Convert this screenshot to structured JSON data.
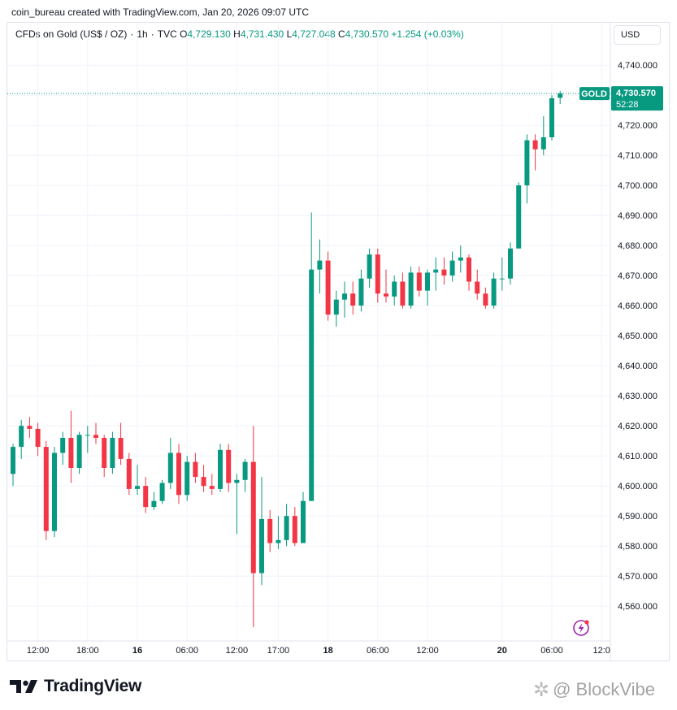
{
  "caption": "coin_bureau created with TradingView.com, Jan 20, 2026 09:07 UTC",
  "symbol": {
    "name": "CFDs on Gold (US$ / OZ)",
    "interval": "1h",
    "source": "TVC",
    "o_label": "O",
    "o_value": "4,729.130",
    "h_label": "H",
    "h_value": "4,731.430",
    "l_label": "L",
    "l_value": "4,727.048",
    "c_label": "C",
    "c_value": "4,730.570",
    "change": "+1.254 (+0.03%)"
  },
  "currency": "USD",
  "price_tag": {
    "symbol": "GOLD",
    "price": "4,730.570",
    "countdown": "52:28"
  },
  "colors": {
    "up": "#089981",
    "down": "#f23645",
    "grid": "#f0f3fa"
  },
  "brand": {
    "name": "TradingView"
  },
  "watermark": {
    "text": "@ BlockVibe"
  },
  "chart_data": {
    "type": "candlestick",
    "y_ticks": [
      "4,560.000",
      "4,570.000",
      "4,580.000",
      "4,590.000",
      "4,600.000",
      "4,610.000",
      "4,620.000",
      "4,630.000",
      "4,640.000",
      "4,650.000",
      "4,660.000",
      "4,670.000",
      "4,680.000",
      "4,690.000",
      "4,700.000",
      "4,710.000",
      "4,720.000",
      "4,730.000",
      "4,740.000"
    ],
    "x_ticks": [
      {
        "label": "12:00",
        "i": 3
      },
      {
        "label": "18:00",
        "i": 9
      },
      {
        "label": "16",
        "i": 15
      },
      {
        "label": "06:00",
        "i": 21
      },
      {
        "label": "12:00",
        "i": 27
      },
      {
        "label": "17:00",
        "i": 32
      },
      {
        "label": "18",
        "i": 38
      },
      {
        "label": "06:00",
        "i": 44
      },
      {
        "label": "12:00",
        "i": 50
      },
      {
        "label": "20",
        "i": 59
      },
      {
        "label": "06:00",
        "i": 65
      },
      {
        "label": "12:0",
        "i": 71
      }
    ],
    "ylim": [
      4551,
      4748
    ],
    "last_price": 4730.57,
    "candles": [
      {
        "o": 4604,
        "h": 4614,
        "l": 4600,
        "c": 4613
      },
      {
        "o": 4613,
        "h": 4622,
        "l": 4609,
        "c": 4620
      },
      {
        "o": 4620,
        "h": 4623,
        "l": 4616,
        "c": 4619
      },
      {
        "o": 4619,
        "h": 4621,
        "l": 4610,
        "c": 4613
      },
      {
        "o": 4613,
        "h": 4615,
        "l": 4582,
        "c": 4585
      },
      {
        "o": 4585,
        "h": 4613,
        "l": 4583,
        "c": 4611
      },
      {
        "o": 4611,
        "h": 4618,
        "l": 4607,
        "c": 4616
      },
      {
        "o": 4616,
        "h": 4625,
        "l": 4601,
        "c": 4606
      },
      {
        "o": 4606,
        "h": 4618,
        "l": 4604,
        "c": 4617
      },
      {
        "o": 4617,
        "h": 4620,
        "l": 4611,
        "c": 4617
      },
      {
        "o": 4617,
        "h": 4621,
        "l": 4614,
        "c": 4616
      },
      {
        "o": 4616,
        "h": 4617,
        "l": 4603,
        "c": 4606
      },
      {
        "o": 4606,
        "h": 4618,
        "l": 4604,
        "c": 4616
      },
      {
        "o": 4616,
        "h": 4621,
        "l": 4607,
        "c": 4609
      },
      {
        "o": 4609,
        "h": 4611,
        "l": 4597,
        "c": 4599
      },
      {
        "o": 4599,
        "h": 4607,
        "l": 4597,
        "c": 4600
      },
      {
        "o": 4600,
        "h": 4603,
        "l": 4591,
        "c": 4593
      },
      {
        "o": 4593,
        "h": 4598,
        "l": 4592,
        "c": 4595
      },
      {
        "o": 4595,
        "h": 4602,
        "l": 4594,
        "c": 4601
      },
      {
        "o": 4601,
        "h": 4616,
        "l": 4599,
        "c": 4611
      },
      {
        "o": 4611,
        "h": 4614,
        "l": 4594,
        "c": 4597
      },
      {
        "o": 4597,
        "h": 4610,
        "l": 4595,
        "c": 4608
      },
      {
        "o": 4608,
        "h": 4611,
        "l": 4601,
        "c": 4603
      },
      {
        "o": 4603,
        "h": 4607,
        "l": 4598,
        "c": 4600
      },
      {
        "o": 4600,
        "h": 4604,
        "l": 4597,
        "c": 4599
      },
      {
        "o": 4599,
        "h": 4614,
        "l": 4598,
        "c": 4612
      },
      {
        "o": 4612,
        "h": 4614,
        "l": 4598,
        "c": 4601
      },
      {
        "o": 4601,
        "h": 4604,
        "l": 4584,
        "c": 4602
      },
      {
        "o": 4602,
        "h": 4609,
        "l": 4598,
        "c": 4608
      },
      {
        "o": 4608,
        "h": 4620,
        "l": 4553,
        "c": 4571
      },
      {
        "o": 4571,
        "h": 4603,
        "l": 4567,
        "c": 4589
      },
      {
        "o": 4589,
        "h": 4592,
        "l": 4578,
        "c": 4581
      },
      {
        "o": 4581,
        "h": 4590,
        "l": 4579,
        "c": 4582
      },
      {
        "o": 4582,
        "h": 4594,
        "l": 4580,
        "c": 4590
      },
      {
        "o": 4590,
        "h": 4593,
        "l": 4580,
        "c": 4581
      },
      {
        "o": 4581,
        "h": 4598,
        "l": 4581,
        "c": 4595
      },
      {
        "o": 4595,
        "h": 4691,
        "l": 4595,
        "c": 4672
      },
      {
        "o": 4672,
        "h": 4682,
        "l": 4664,
        "c": 4675
      },
      {
        "o": 4675,
        "h": 4678,
        "l": 4655,
        "c": 4657
      },
      {
        "o": 4657,
        "h": 4665,
        "l": 4653,
        "c": 4662
      },
      {
        "o": 4662,
        "h": 4668,
        "l": 4656,
        "c": 4664
      },
      {
        "o": 4664,
        "h": 4668,
        "l": 4657,
        "c": 4660
      },
      {
        "o": 4660,
        "h": 4672,
        "l": 4658,
        "c": 4669
      },
      {
        "o": 4669,
        "h": 4679,
        "l": 4666,
        "c": 4677
      },
      {
        "o": 4677,
        "h": 4679,
        "l": 4661,
        "c": 4664
      },
      {
        "o": 4664,
        "h": 4672,
        "l": 4661,
        "c": 4663
      },
      {
        "o": 4663,
        "h": 4670,
        "l": 4660,
        "c": 4668
      },
      {
        "o": 4668,
        "h": 4671,
        "l": 4659,
        "c": 4660
      },
      {
        "o": 4660,
        "h": 4673,
        "l": 4659,
        "c": 4671
      },
      {
        "o": 4671,
        "h": 4673,
        "l": 4663,
        "c": 4665
      },
      {
        "o": 4665,
        "h": 4672,
        "l": 4660,
        "c": 4671
      },
      {
        "o": 4671,
        "h": 4676,
        "l": 4665,
        "c": 4672
      },
      {
        "o": 4672,
        "h": 4676,
        "l": 4667,
        "c": 4670
      },
      {
        "o": 4670,
        "h": 4678,
        "l": 4668,
        "c": 4675
      },
      {
        "o": 4675,
        "h": 4680,
        "l": 4671,
        "c": 4676
      },
      {
        "o": 4676,
        "h": 4677,
        "l": 4665,
        "c": 4668
      },
      {
        "o": 4668,
        "h": 4672,
        "l": 4662,
        "c": 4664
      },
      {
        "o": 4664,
        "h": 4666,
        "l": 4659,
        "c": 4660
      },
      {
        "o": 4660,
        "h": 4671,
        "l": 4659,
        "c": 4669
      },
      {
        "o": 4669,
        "h": 4676,
        "l": 4665,
        "c": 4669
      },
      {
        "o": 4669,
        "h": 4681,
        "l": 4667,
        "c": 4679
      },
      {
        "o": 4679,
        "h": 4701,
        "l": 4679,
        "c": 4700
      },
      {
        "o": 4700,
        "h": 4717,
        "l": 4694,
        "c": 4715
      },
      {
        "o": 4715,
        "h": 4717,
        "l": 4705,
        "c": 4712
      },
      {
        "o": 4712,
        "h": 4723,
        "l": 4710,
        "c": 4716
      },
      {
        "o": 4716,
        "h": 4730,
        "l": 4715,
        "c": 4729
      },
      {
        "o": 4729.13,
        "h": 4731.43,
        "l": 4727.05,
        "c": 4730.57
      }
    ]
  }
}
